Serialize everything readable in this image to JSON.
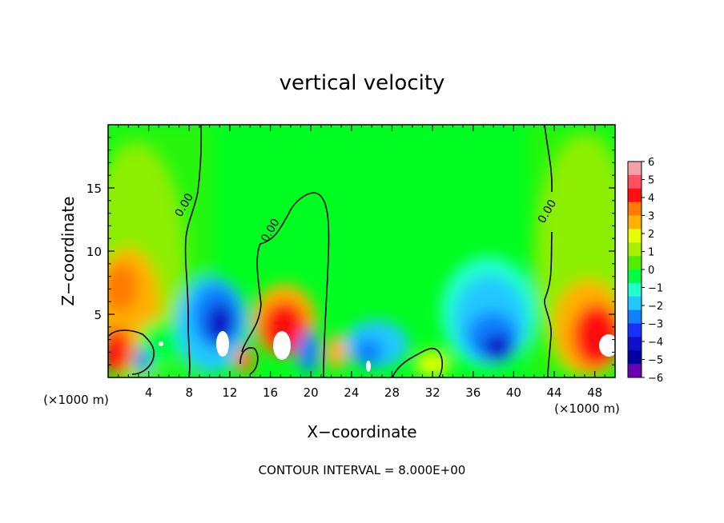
{
  "chart_data": {
    "type": "heatmap",
    "title": "vertical velocity",
    "xlabel": "X−coordinate",
    "ylabel": "Z−coordinate",
    "x_unit_label_left": "(×1000 m)",
    "y_unit_label_right": "(×1000 m)",
    "footer": "CONTOUR INTERVAL = 8.000E+00",
    "xlim": [
      0,
      50
    ],
    "ylim": [
      0,
      20
    ],
    "x_ticks": [
      4,
      8,
      12,
      16,
      20,
      24,
      28,
      32,
      36,
      40,
      44,
      48
    ],
    "y_ticks": [
      5,
      10,
      15
    ],
    "colorbar": {
      "levels": [
        6,
        5,
        4,
        3,
        2,
        1,
        0,
        -1,
        -2,
        -3,
        -4,
        -5,
        -6
      ],
      "labels": [
        "6",
        "5",
        "4",
        "3",
        "2",
        "1",
        "0",
        "−1",
        "−2",
        "−3",
        "−4",
        "−5",
        "−6"
      ],
      "colors": [
        "#f4a0a8",
        "#ff5060",
        "#ff1010",
        "#ff7a00",
        "#ffb000",
        "#e8ff00",
        "#a8f000",
        "#50ee00",
        "#00ff40",
        "#20ffcc",
        "#20c8ff",
        "#1080ff",
        "#1830ff",
        "#1010c8",
        "#0000a0",
        "#6a00b4"
      ]
    },
    "contour_labels": [
      {
        "text": "0.00",
        "x": 7.8,
        "z": 13.5
      },
      {
        "text": "0.00",
        "x": 16.3,
        "z": 11.5
      },
      {
        "text": "0.00",
        "x": 43.6,
        "z": 13.0
      }
    ]
  }
}
